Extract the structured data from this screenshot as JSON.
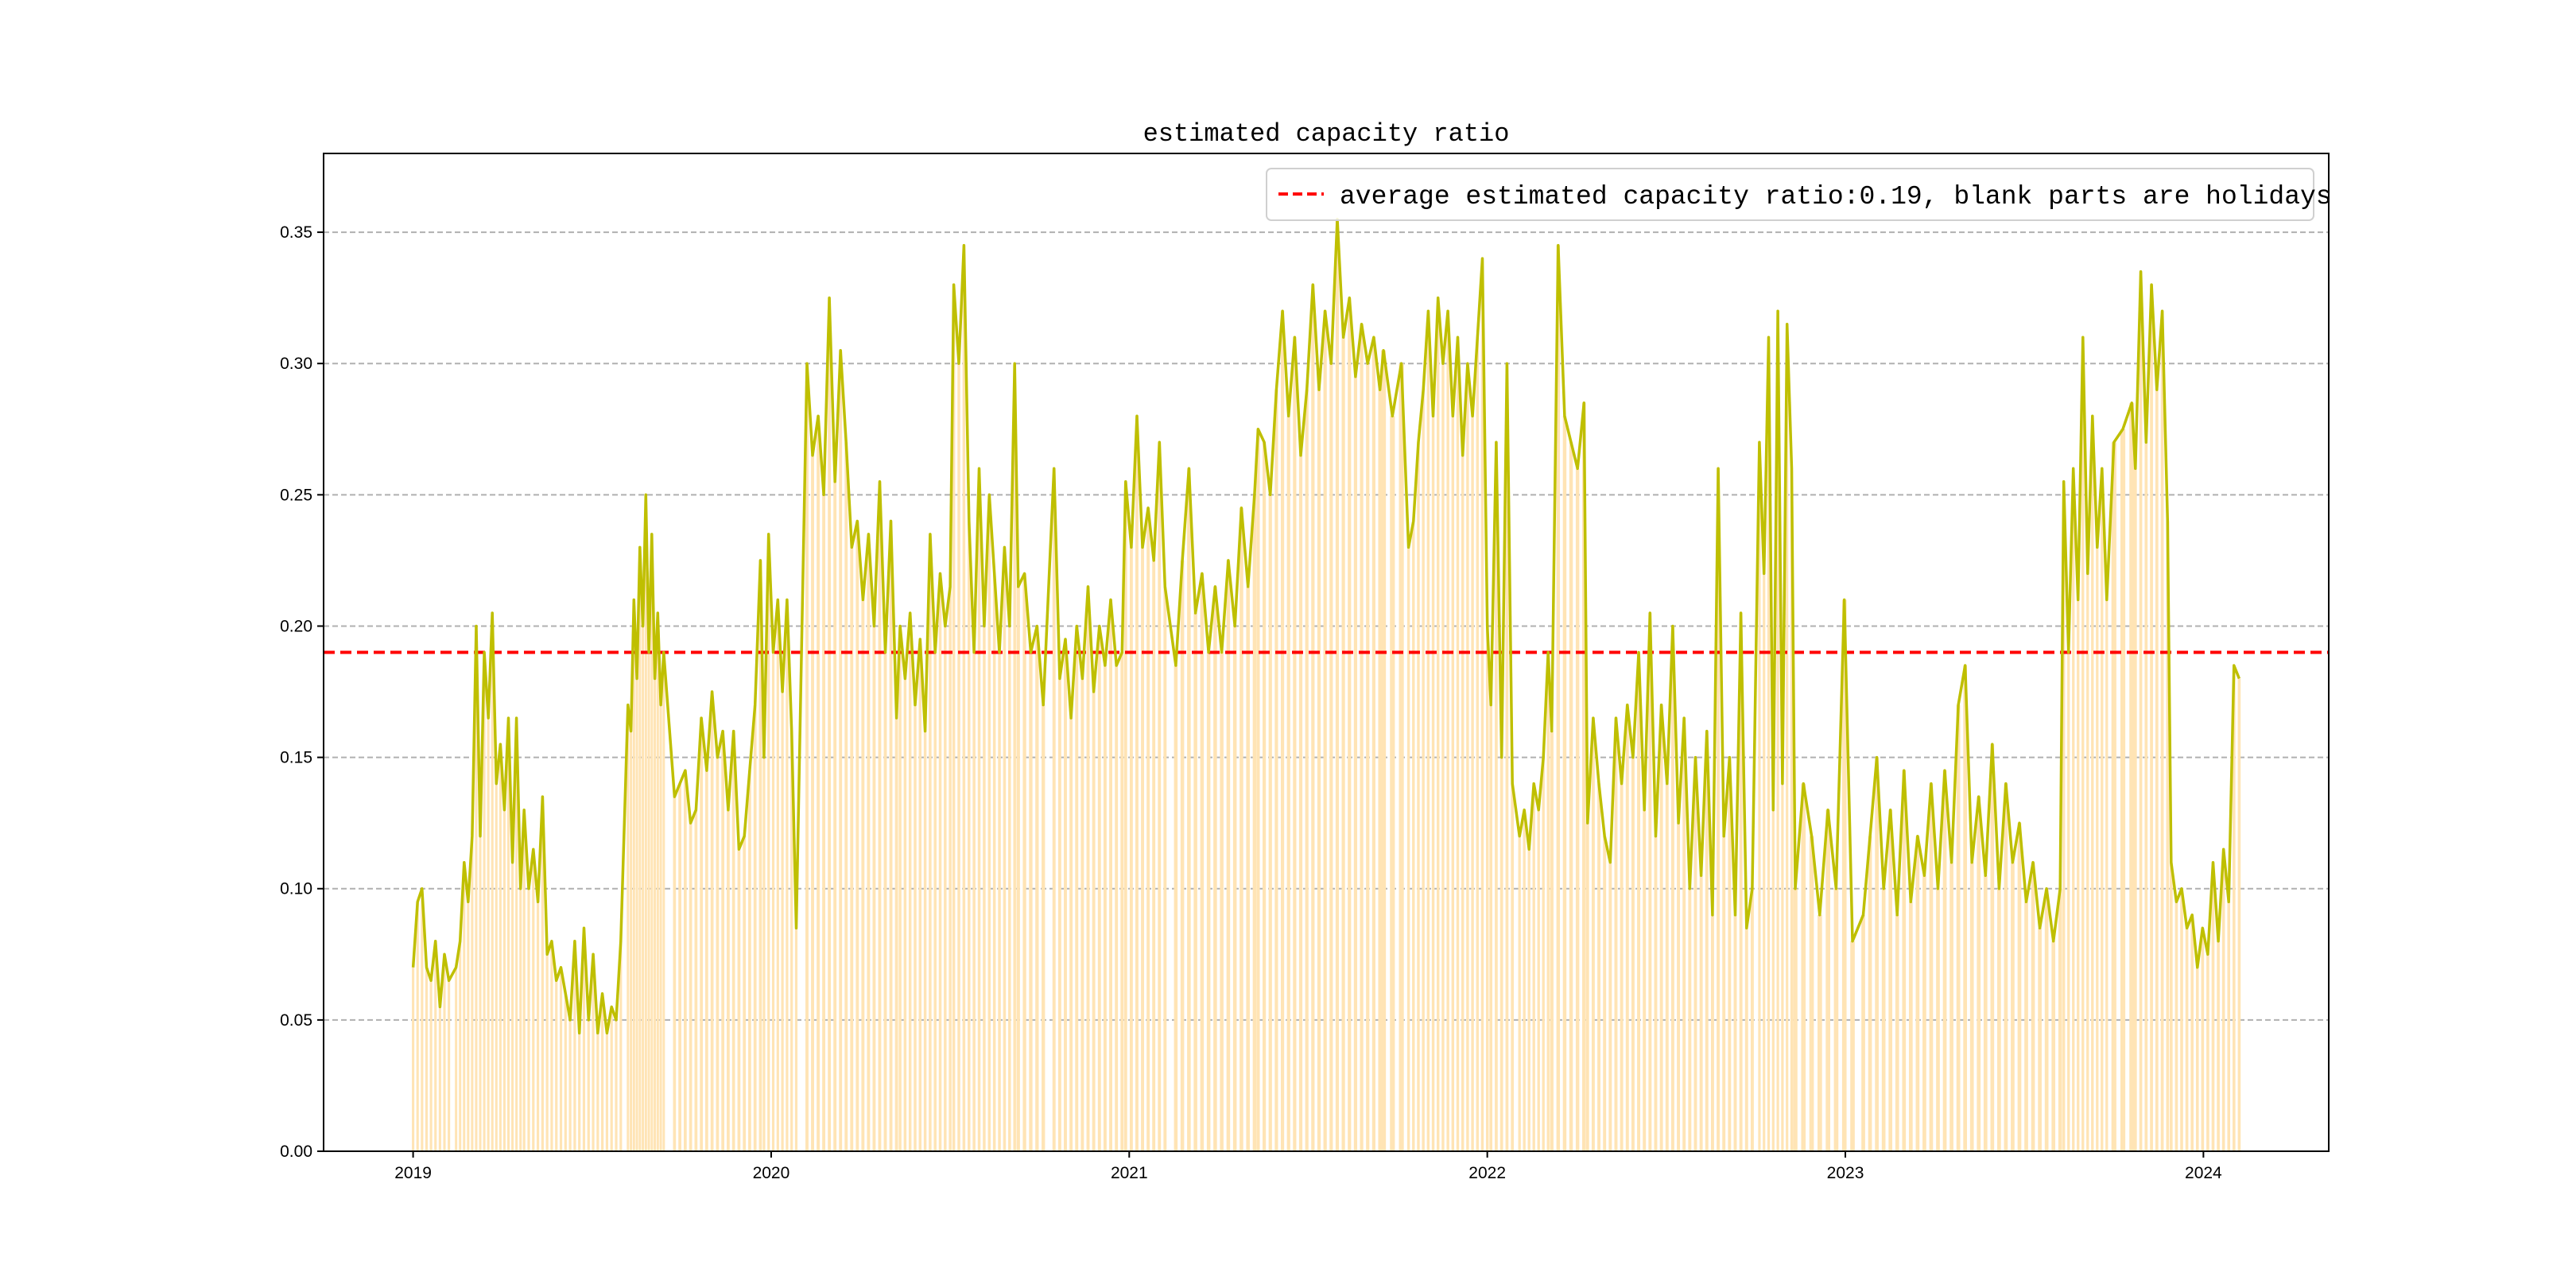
{
  "chart_data": {
    "type": "line",
    "title": "estimated capacity ratio",
    "xlabel": "",
    "ylabel": "",
    "xlim": [
      2018.75,
      2024.35
    ],
    "ylim": [
      0,
      0.38
    ],
    "grid": "horizontal dashed",
    "xticks": [
      2019,
      2020,
      2021,
      2022,
      2023,
      2024
    ],
    "xtick_labels": [
      "2019",
      "2020",
      "2021",
      "2022",
      "2023",
      "2024"
    ],
    "yticks": [
      0,
      0.05,
      0.1,
      0.15,
      0.2,
      0.25,
      0.3,
      0.35
    ],
    "ytick_labels": [
      "0.00",
      "0.05",
      "0.10",
      "0.15",
      "0.20",
      "0.25",
      "0.30",
      "0.35"
    ],
    "legend": {
      "placement": "top-right",
      "label": "average estimated capacity ratio:0.19, blank parts are holidays"
    },
    "average": 0.19,
    "colors": {
      "line": "#bfbf00",
      "bars": "#ffe4b5",
      "average": "#ff0000",
      "grid": "#b0b0b0"
    },
    "segments": [
      {
        "start": 2019.0,
        "end": 2019.1,
        "values": [
          0.07,
          0.095,
          0.1,
          0.07,
          0.065,
          0.08,
          0.055,
          0.075,
          0.065
        ]
      },
      {
        "start": 2019.12,
        "end": 2019.3,
        "values": [
          0.07,
          0.08,
          0.11,
          0.095,
          0.12,
          0.2,
          0.12,
          0.19,
          0.165,
          0.205,
          0.14,
          0.155,
          0.13,
          0.165,
          0.11,
          0.165,
          0.1
        ]
      },
      {
        "start": 2019.31,
        "end": 2019.58,
        "values": [
          0.13,
          0.1,
          0.115,
          0.095,
          0.135,
          0.075,
          0.08,
          0.065,
          0.07,
          0.06,
          0.05,
          0.08,
          0.045,
          0.085,
          0.05,
          0.075,
          0.045,
          0.06,
          0.045,
          0.055,
          0.05,
          0.08
        ]
      },
      {
        "start": 2019.6,
        "end": 2019.7,
        "values": [
          0.17,
          0.16,
          0.21,
          0.18,
          0.23,
          0.2,
          0.25,
          0.19,
          0.235,
          0.18,
          0.205,
          0.17,
          0.19
        ]
      },
      {
        "start": 2019.73,
        "end": 2019.97,
        "values": [
          0.135,
          0.14,
          0.145,
          0.125,
          0.13,
          0.165,
          0.145,
          0.175,
          0.15,
          0.16,
          0.13,
          0.16,
          0.115,
          0.12,
          0.145,
          0.17,
          0.225
        ]
      },
      {
        "start": 2019.98,
        "end": 2020.07,
        "values": [
          0.15,
          0.235,
          0.19,
          0.21,
          0.175,
          0.21,
          0.16,
          0.085
        ]
      },
      {
        "start": 2020.1,
        "end": 2020.35,
        "values": [
          0.3,
          0.265,
          0.28,
          0.25,
          0.325,
          0.255,
          0.305,
          0.27,
          0.23,
          0.24,
          0.21,
          0.235,
          0.2,
          0.255,
          0.19,
          0.24,
          0.165
        ]
      },
      {
        "start": 2020.36,
        "end": 2020.5,
        "values": [
          0.2,
          0.18,
          0.205,
          0.17,
          0.195,
          0.16,
          0.235,
          0.19,
          0.22,
          0.2,
          0.215
        ]
      },
      {
        "start": 2020.51,
        "end": 2020.68,
        "values": [
          0.33,
          0.3,
          0.345,
          0.24,
          0.19,
          0.26,
          0.2,
          0.25,
          0.22,
          0.19,
          0.23,
          0.2,
          0.3
        ]
      },
      {
        "start": 2020.69,
        "end": 2020.76,
        "values": [
          0.215,
          0.22,
          0.19,
          0.2,
          0.17
        ]
      },
      {
        "start": 2020.79,
        "end": 2020.98,
        "values": [
          0.26,
          0.18,
          0.195,
          0.165,
          0.2,
          0.18,
          0.215,
          0.175,
          0.2,
          0.185,
          0.21,
          0.185,
          0.19
        ]
      },
      {
        "start": 2020.99,
        "end": 2021.1,
        "values": [
          0.255,
          0.23,
          0.28,
          0.23,
          0.245,
          0.225,
          0.27,
          0.215
        ]
      },
      {
        "start": 2021.13,
        "end": 2021.35,
        "values": [
          0.185,
          0.225,
          0.26,
          0.205,
          0.22,
          0.19,
          0.215,
          0.19,
          0.225,
          0.2,
          0.245,
          0.215,
          0.25
        ]
      },
      {
        "start": 2021.36,
        "end": 2021.7,
        "values": [
          0.275,
          0.27,
          0.25,
          0.29,
          0.32,
          0.28,
          0.31,
          0.265,
          0.29,
          0.33,
          0.29,
          0.32,
          0.3,
          0.355,
          0.31,
          0.325,
          0.295,
          0.315,
          0.3,
          0.31,
          0.29
        ]
      },
      {
        "start": 2021.71,
        "end": 2021.76,
        "values": [
          0.305,
          0.28,
          0.3
        ]
      },
      {
        "start": 2021.78,
        "end": 2022.0,
        "values": [
          0.23,
          0.24,
          0.27,
          0.29,
          0.32,
          0.28,
          0.325,
          0.3,
          0.32,
          0.28,
          0.31,
          0.265,
          0.3,
          0.28,
          0.31,
          0.34,
          0.2
        ]
      },
      {
        "start": 2022.01,
        "end": 2022.07,
        "values": [
          0.17,
          0.27,
          0.15,
          0.3,
          0.14
        ]
      },
      {
        "start": 2022.09,
        "end": 2022.17,
        "values": [
          0.12,
          0.13,
          0.115,
          0.14,
          0.13,
          0.15,
          0.19
        ]
      },
      {
        "start": 2022.18,
        "end": 2022.27,
        "values": [
          0.16,
          0.345,
          0.28,
          0.27,
          0.26,
          0.285
        ]
      },
      {
        "start": 2022.28,
        "end": 2022.74,
        "values": [
          0.125,
          0.165,
          0.14,
          0.12,
          0.11,
          0.165,
          0.14,
          0.17,
          0.15,
          0.19,
          0.13,
          0.205,
          0.12,
          0.17,
          0.14,
          0.2,
          0.125,
          0.165,
          0.1,
          0.15,
          0.105,
          0.16,
          0.09,
          0.26,
          0.12,
          0.15,
          0.09,
          0.205,
          0.085,
          0.1
        ]
      },
      {
        "start": 2022.76,
        "end": 2022.85,
        "values": [
          0.27,
          0.22,
          0.31,
          0.13,
          0.32,
          0.14,
          0.315,
          0.26
        ]
      },
      {
        "start": 2022.86,
        "end": 2023.02,
        "values": [
          0.1,
          0.14,
          0.12,
          0.09,
          0.13,
          0.1,
          0.21,
          0.08
        ]
      },
      {
        "start": 2023.05,
        "end": 2023.6,
        "values": [
          0.09,
          0.12,
          0.15,
          0.1,
          0.13,
          0.09,
          0.145,
          0.095,
          0.12,
          0.105,
          0.14,
          0.1,
          0.145,
          0.11,
          0.17,
          0.185,
          0.11,
          0.135,
          0.105,
          0.155,
          0.1,
          0.14,
          0.11,
          0.125,
          0.095,
          0.11,
          0.085,
          0.1,
          0.08,
          0.1
        ]
      },
      {
        "start": 2023.61,
        "end": 2023.73,
        "values": [
          0.255,
          0.19,
          0.26,
          0.21,
          0.31,
          0.22,
          0.28,
          0.23,
          0.26,
          0.21
        ]
      },
      {
        "start": 2023.75,
        "end": 2023.8,
        "values": [
          0.27,
          0.275,
          0.285
        ]
      },
      {
        "start": 2023.81,
        "end": 2023.9,
        "values": [
          0.26,
          0.335,
          0.27,
          0.33,
          0.29,
          0.32,
          0.24
        ]
      },
      {
        "start": 2023.91,
        "end": 2024.1,
        "values": [
          0.11,
          0.095,
          0.1,
          0.085,
          0.09,
          0.07,
          0.085,
          0.075,
          0.11,
          0.08,
          0.115,
          0.095,
          0.185,
          0.18
        ]
      }
    ]
  }
}
